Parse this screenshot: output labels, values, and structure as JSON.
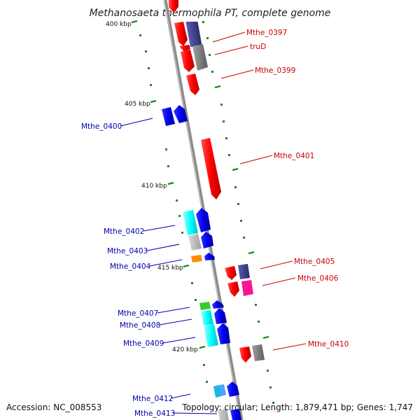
{
  "title": "Methanosaeta thermophila PT, complete genome",
  "footer": {
    "accession": "Accession: NC_008553",
    "topology": "Topology: circular; Length: 1,879,471 bp; Genes: 1,747"
  },
  "scale_labels": [
    "400 kbp",
    "405 kbp",
    "410 kbp",
    "415 kbp",
    "420 kbp"
  ],
  "gene_labels": {
    "right": [
      "Mthe_0397",
      "truD",
      "Mthe_0399",
      "Mthe_0401",
      "Mthe_0405",
      "Mthe_0406",
      "Mthe_0410"
    ],
    "left": [
      "Mthe_0400",
      "Mthe_0402",
      "Mthe_0403",
      "Mthe_0404",
      "Mthe_0407",
      "Mthe_0408",
      "Mthe_0409",
      "Mthe_0412",
      "Mthe_0413"
    ]
  },
  "colors": {
    "backbone": "#8c8c8c",
    "red": "#ff0000",
    "blue": "#0000ee",
    "dark_blue": "#3b3b8f",
    "cyan": "#00ffff",
    "gray": "#808080",
    "light_gray": "#bdbdbd",
    "orange": "#ff8c00",
    "green": "#33cc33",
    "magenta": "#ff1493",
    "tick_green": "#1a8c1a",
    "label_red": "#cc0000",
    "label_blue": "#0000aa"
  }
}
